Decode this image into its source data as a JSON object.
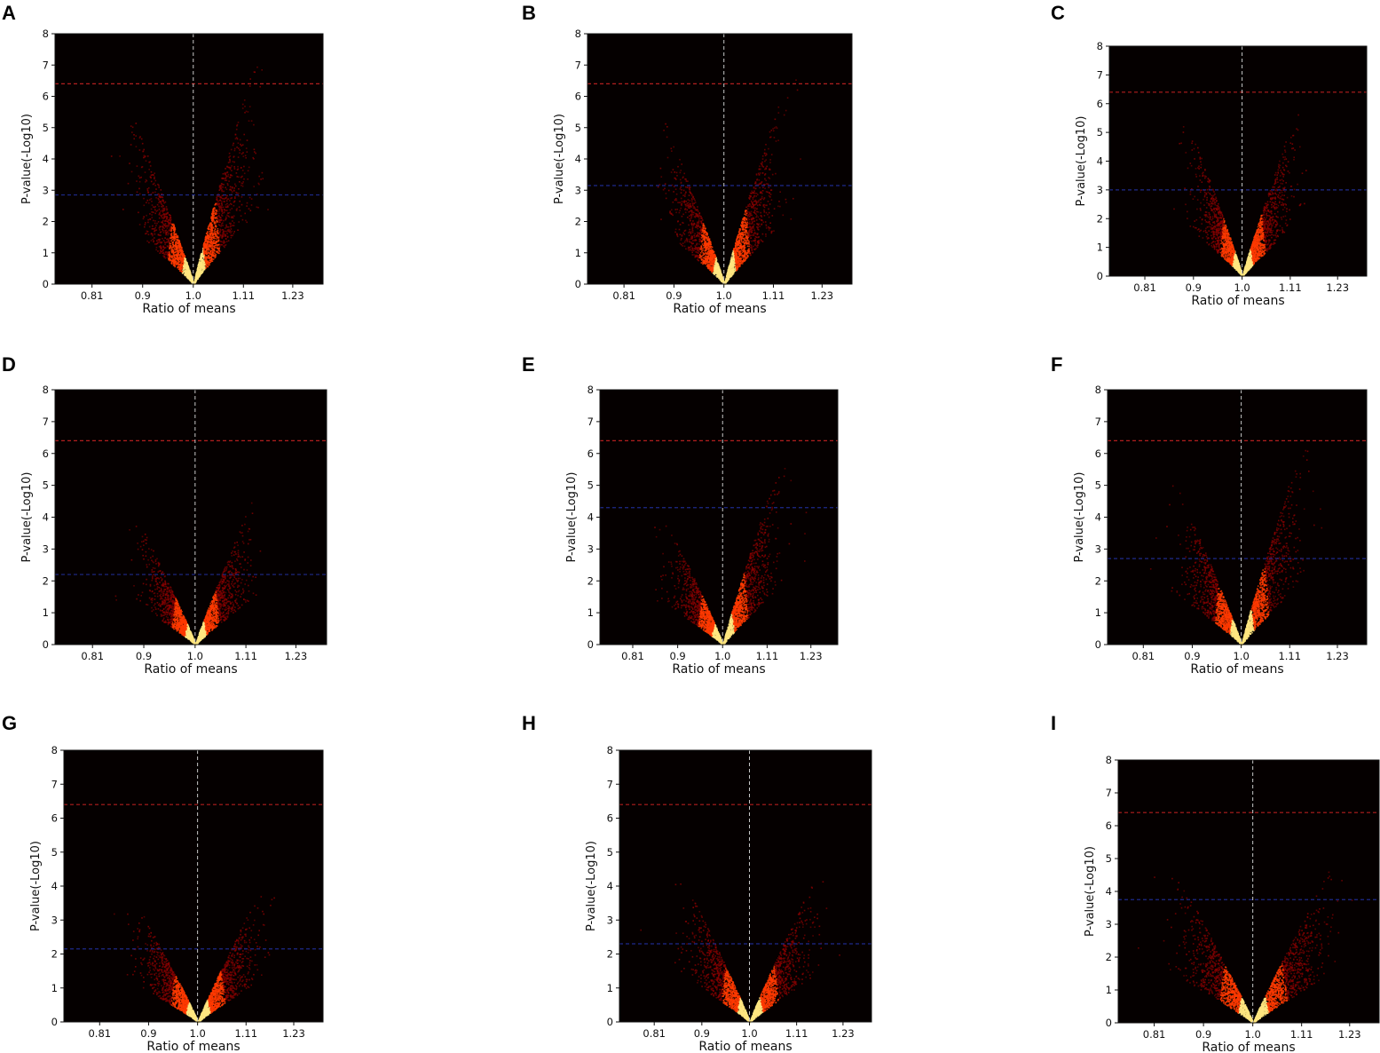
{
  "figure": {
    "background": "#ffffff",
    "plot_background": "#050000"
  },
  "colors": {
    "point_low": "#8b0000",
    "point_mid": "#ff3a00",
    "point_high": "#ffe680",
    "bonferroni_line": "#b21e1e",
    "fdr_line": "#1e2a8c",
    "center_line": "#c8c8c8"
  },
  "chart_data": [
    {
      "panel": "A",
      "type": "scatter",
      "subtype": "volcano",
      "xlabel": "Ratio of means",
      "ylabel": "P-value(-Log10)",
      "xticks": [
        "0.81",
        "0.9",
        "1.0",
        "1.11",
        "1.23"
      ],
      "yticks": [
        0,
        1,
        2,
        3,
        4,
        5,
        6,
        7,
        8
      ],
      "xlim": [
        0.75,
        1.31
      ],
      "ylim": [
        0,
        8
      ],
      "grid": false,
      "bonferroni_threshold": 6.4,
      "fdr_threshold": 2.85,
      "center_x": 1.0,
      "left_peak": 5.0,
      "right_peak": 6.6,
      "spread": 0.11
    },
    {
      "panel": "B",
      "type": "scatter",
      "subtype": "volcano",
      "xlabel": "Ratio of means",
      "ylabel": "P-value(-Log10)",
      "xticks": [
        "0.81",
        "0.9",
        "1.0",
        "1.11",
        "1.23"
      ],
      "yticks": [
        0,
        1,
        2,
        3,
        4,
        5,
        6,
        7,
        8
      ],
      "xlim": [
        0.75,
        1.31
      ],
      "ylim": [
        0,
        8
      ],
      "grid": false,
      "bonferroni_threshold": 6.4,
      "fdr_threshold": 3.15,
      "center_x": 1.0,
      "left_peak": 4.9,
      "right_peak": 6.0,
      "spread": 0.11
    },
    {
      "panel": "C",
      "type": "scatter",
      "subtype": "volcano",
      "xlabel": "Ratio of means",
      "ylabel": "P-value(-Log10)",
      "xticks": [
        "0.81",
        "0.9",
        "1.0",
        "1.11",
        "1.23"
      ],
      "yticks": [
        0,
        1,
        2,
        3,
        4,
        5,
        6,
        7,
        8
      ],
      "xlim": [
        0.75,
        1.31
      ],
      "ylim": [
        0,
        8
      ],
      "grid": false,
      "bonferroni_threshold": 6.4,
      "fdr_threshold": 3.0,
      "center_x": 1.0,
      "left_peak": 4.9,
      "right_peak": 5.3,
      "spread": 0.1
    },
    {
      "panel": "D",
      "type": "scatter",
      "subtype": "volcano",
      "xlabel": "Ratio of means",
      "ylabel": "P-value(-Log10)",
      "xticks": [
        "0.81",
        "0.9",
        "1.0",
        "1.11",
        "1.23"
      ],
      "yticks": [
        0,
        1,
        2,
        3,
        4,
        5,
        6,
        7,
        8
      ],
      "xlim": [
        0.75,
        1.31
      ],
      "ylim": [
        0,
        8
      ],
      "grid": false,
      "bonferroni_threshold": 6.4,
      "fdr_threshold": 2.2,
      "center_x": 1.0,
      "left_peak": 3.6,
      "right_peak": 4.2,
      "spread": 0.1
    },
    {
      "panel": "E",
      "type": "scatter",
      "subtype": "volcano",
      "xlabel": "Ratio of means",
      "ylabel": "P-value(-Log10)",
      "xticks": [
        "0.81",
        "0.9",
        "1.0",
        "1.11",
        "1.23"
      ],
      "yticks": [
        0,
        1,
        2,
        3,
        4,
        5,
        6,
        7,
        8
      ],
      "xlim": [
        0.75,
        1.31
      ],
      "ylim": [
        0,
        8
      ],
      "grid": false,
      "bonferroni_threshold": 6.4,
      "fdr_threshold": 4.3,
      "center_x": 1.0,
      "left_peak": 3.8,
      "right_peak": 5.5,
      "spread": 0.12
    },
    {
      "panel": "F",
      "type": "scatter",
      "subtype": "volcano",
      "xlabel": "Ratio of means",
      "ylabel": "P-value(-Log10)",
      "xticks": [
        "0.81",
        "0.9",
        "1.0",
        "1.11",
        "1.23"
      ],
      "yticks": [
        0,
        1,
        2,
        3,
        4,
        5,
        6,
        7,
        8
      ],
      "xlim": [
        0.75,
        1.31
      ],
      "ylim": [
        0,
        8
      ],
      "grid": false,
      "bonferroni_threshold": 6.4,
      "fdr_threshold": 2.7,
      "center_x": 1.0,
      "left_peak": 4.6,
      "right_peak": 6.2,
      "spread": 0.12
    },
    {
      "panel": "G",
      "type": "scatter",
      "subtype": "volcano",
      "xlabel": "Ratio of means",
      "ylabel": "P-value(-Log10)",
      "xticks": [
        "0.81",
        "0.9",
        "1.0",
        "1.11",
        "1.23"
      ],
      "yticks": [
        0,
        1,
        2,
        3,
        4,
        5,
        6,
        7,
        8
      ],
      "xlim": [
        0.75,
        1.31
      ],
      "ylim": [
        0,
        8
      ],
      "grid": false,
      "bonferroni_threshold": 6.4,
      "fdr_threshold": 2.15,
      "center_x": 1.0,
      "left_peak": 3.4,
      "right_peak": 3.7,
      "spread": 0.12
    },
    {
      "panel": "H",
      "type": "scatter",
      "subtype": "volcano",
      "xlabel": "Ratio of means",
      "ylabel": "P-value(-Log10)",
      "xticks": [
        "0.81",
        "0.9",
        "1.0",
        "1.11",
        "1.23"
      ],
      "yticks": [
        0,
        1,
        2,
        3,
        4,
        5,
        6,
        7,
        8
      ],
      "xlim": [
        0.75,
        1.31
      ],
      "ylim": [
        0,
        8
      ],
      "grid": false,
      "bonferroni_threshold": 6.4,
      "fdr_threshold": 2.3,
      "center_x": 1.0,
      "left_peak": 4.0,
      "right_peak": 4.1,
      "spread": 0.13
    },
    {
      "panel": "I",
      "type": "scatter",
      "subtype": "volcano",
      "xlabel": "Ratio of means",
      "ylabel": "P-value(-Log10)",
      "xticks": [
        "0.81",
        "0.9",
        "1.0",
        "1.11",
        "1.23"
      ],
      "yticks": [
        0,
        1,
        2,
        3,
        4,
        5,
        6,
        7,
        8
      ],
      "xlim": [
        0.75,
        1.31
      ],
      "ylim": [
        0,
        8
      ],
      "grid": false,
      "bonferroni_threshold": 6.4,
      "fdr_threshold": 3.75,
      "center_x": 1.0,
      "left_peak": 4.4,
      "right_peak": 4.5,
      "spread": 0.15
    }
  ]
}
